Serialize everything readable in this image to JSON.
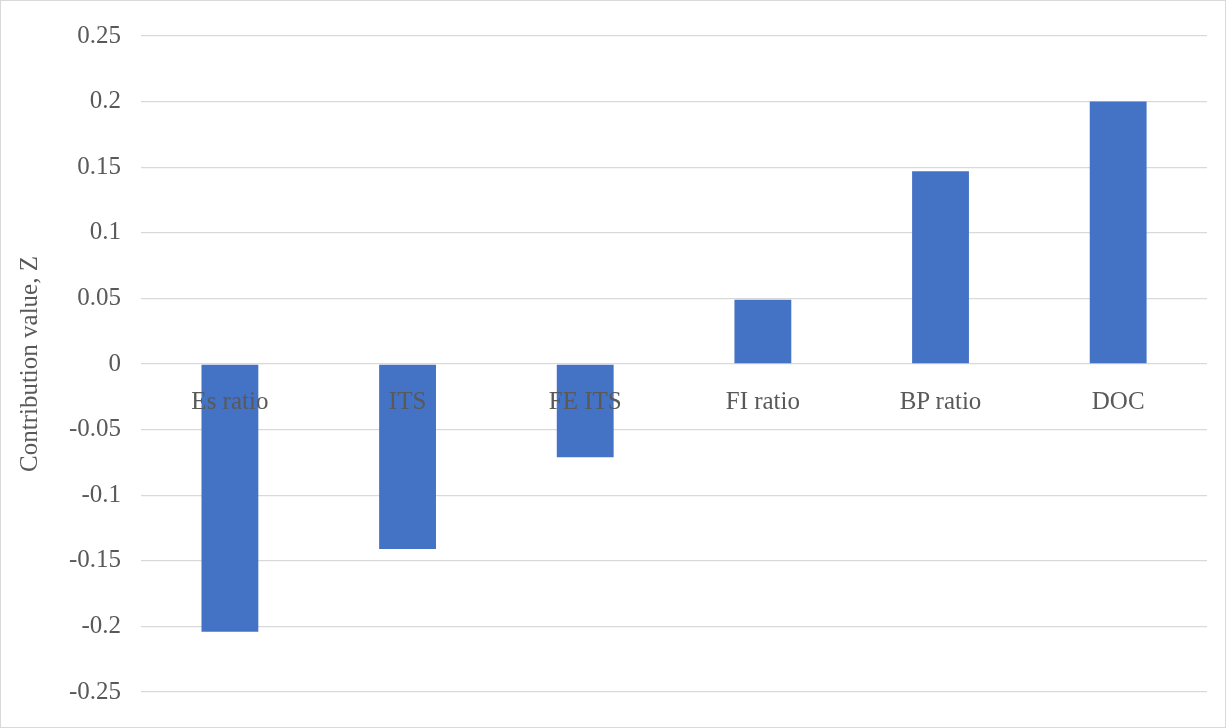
{
  "chart_data": {
    "type": "bar",
    "ylabel": "Contribution value, Z",
    "categories": [
      "Es ratio",
      "ITS",
      "FE ITS",
      "FI ratio",
      "BP ratio",
      "DOC"
    ],
    "values": [
      -0.204,
      -0.141,
      -0.071,
      0.049,
      0.147,
      0.2
    ],
    "color": "#4472c4",
    "ylim": [
      -0.25,
      0.25
    ],
    "yticks": [
      -0.25,
      -0.2,
      -0.15,
      -0.1,
      -0.05,
      0,
      0.05,
      0.1,
      0.15,
      0.2,
      0.25
    ],
    "grid": "y",
    "legend": false
  }
}
